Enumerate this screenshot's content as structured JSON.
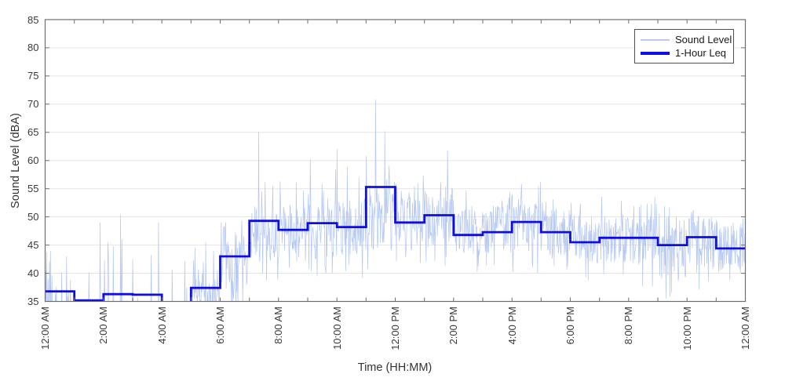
{
  "axes": {
    "xlabel": "Time (HH:MM)",
    "ylabel": "Sound Level (dBA)",
    "y_ticks": [
      35,
      40,
      45,
      50,
      55,
      60,
      65,
      70,
      75,
      80,
      85
    ],
    "x_tick_labels": [
      "12:00 AM",
      "2:00 AM",
      "4:00 AM",
      "6:00 AM",
      "8:00 AM",
      "10:00 AM",
      "12:00 PM",
      "2:00 PM",
      "4:00 PM",
      "6:00 PM",
      "8:00 PM",
      "10:00 PM",
      "12:00 AM"
    ],
    "x_labeled_hours": [
      0,
      2,
      4,
      6,
      8,
      10,
      12,
      14,
      16,
      18,
      20,
      22,
      24
    ],
    "colors": {
      "grid": "#e4e4e4",
      "spine": "#6f6f6f",
      "tick_text": "#3a3a3a",
      "background": "#ffffff"
    }
  },
  "legend": {
    "items": [
      {
        "label": "Sound Level",
        "color": "#b7c9f2",
        "thickness": 2
      },
      {
        "label": "1-Hour Leq",
        "color": "#0e0ee0",
        "thickness": 4
      }
    ]
  },
  "chart_data": {
    "type": "line",
    "title": "",
    "xlabel": "Time (HH:MM)",
    "ylabel": "Sound Level (dBA)",
    "xlim_hours": [
      0,
      24
    ],
    "ylim": [
      35,
      85
    ],
    "grid": "horizontal-only",
    "legend_position": "top-right-inside",
    "x_major_tick_hours": 2,
    "x_minor_tick_hours": 1,
    "box": true,
    "seed": 20,
    "series": [
      {
        "name": "Sound Level",
        "kind": "noisy-1min-trace",
        "color": "#b7c9f2",
        "line_width": 0.75,
        "sample_interval_minutes": 1,
        "per_hour_envelope_comment": "per hour [typical_low_dBA, typical_high_dBA, spike_max_dBA, spike_probability]; values below ylim 35 are clipped by axes",
        "per_hour_envelope": [
          [
            31.0,
            34.6,
            44.0,
            0.1
          ],
          [
            31.0,
            34.6,
            46.0,
            0.05
          ],
          [
            31.0,
            34.8,
            48.0,
            0.06
          ],
          [
            31.0,
            34.8,
            47.0,
            0.06
          ],
          [
            30.5,
            34.5,
            43.0,
            0.05
          ],
          [
            33.0,
            39.5,
            46.0,
            0.12
          ],
          [
            36.5,
            46.5,
            50.5,
            0.16
          ],
          [
            42.0,
            51.0,
            57.0,
            0.12
          ],
          [
            42.0,
            51.5,
            57.0,
            0.12
          ],
          [
            42.5,
            52.5,
            58.5,
            0.12
          ],
          [
            42.5,
            52.5,
            59.0,
            0.12
          ],
          [
            44.0,
            54.5,
            61.0,
            0.12
          ],
          [
            44.0,
            53.5,
            57.5,
            0.1
          ],
          [
            44.0,
            53.5,
            58.0,
            0.1
          ],
          [
            43.0,
            51.5,
            55.0,
            0.1
          ],
          [
            43.0,
            52.0,
            55.5,
            0.1
          ],
          [
            43.5,
            52.5,
            56.0,
            0.1
          ],
          [
            42.5,
            51.5,
            55.0,
            0.1
          ],
          [
            41.5,
            50.0,
            53.5,
            0.09
          ],
          [
            41.5,
            50.5,
            54.0,
            0.09
          ],
          [
            41.0,
            50.0,
            54.0,
            0.09
          ],
          [
            38.5,
            49.0,
            52.0,
            0.09
          ],
          [
            40.0,
            50.0,
            52.5,
            0.09
          ],
          [
            40.0,
            48.5,
            51.0,
            0.09
          ]
        ],
        "major_spikes_minute_value": [
          [
            1,
            40.5
          ],
          [
            3,
            43.8
          ],
          [
            6,
            38.9
          ],
          [
            9,
            42.2
          ],
          [
            11,
            44.0
          ],
          [
            14,
            39.6
          ],
          [
            34,
            40.2
          ],
          [
            52,
            38.8
          ],
          [
            113,
            49.0
          ],
          [
            155,
            50.4
          ],
          [
            158,
            46.0
          ],
          [
            180,
            42.4
          ],
          [
            233,
            49.0
          ],
          [
            287,
            42.1
          ],
          [
            305,
            42.3
          ],
          [
            330,
            45.5
          ],
          [
            439,
            65.1
          ],
          [
            545,
            60.3
          ],
          [
            600,
            62.0
          ],
          [
            645,
            57.0
          ],
          [
            679,
            70.8
          ],
          [
            698,
            65.2
          ],
          [
            827,
            61.8
          ],
          [
            1018,
            56.2
          ]
        ]
      },
      {
        "name": "1-Hour Leq",
        "kind": "hourly-step",
        "color": "#0e0ee0",
        "line_width": 2.8,
        "hourly_values": [
          36.8,
          35.2,
          36.3,
          36.2,
          34.2,
          37.4,
          43.0,
          49.3,
          47.7,
          48.9,
          48.2,
          55.3,
          49.0,
          50.3,
          46.8,
          47.3,
          49.1,
          47.3,
          45.5,
          46.3,
          46.3,
          45.0,
          46.4,
          44.4
        ],
        "hours_clipped_below_ylim": [
          4
        ]
      }
    ]
  }
}
